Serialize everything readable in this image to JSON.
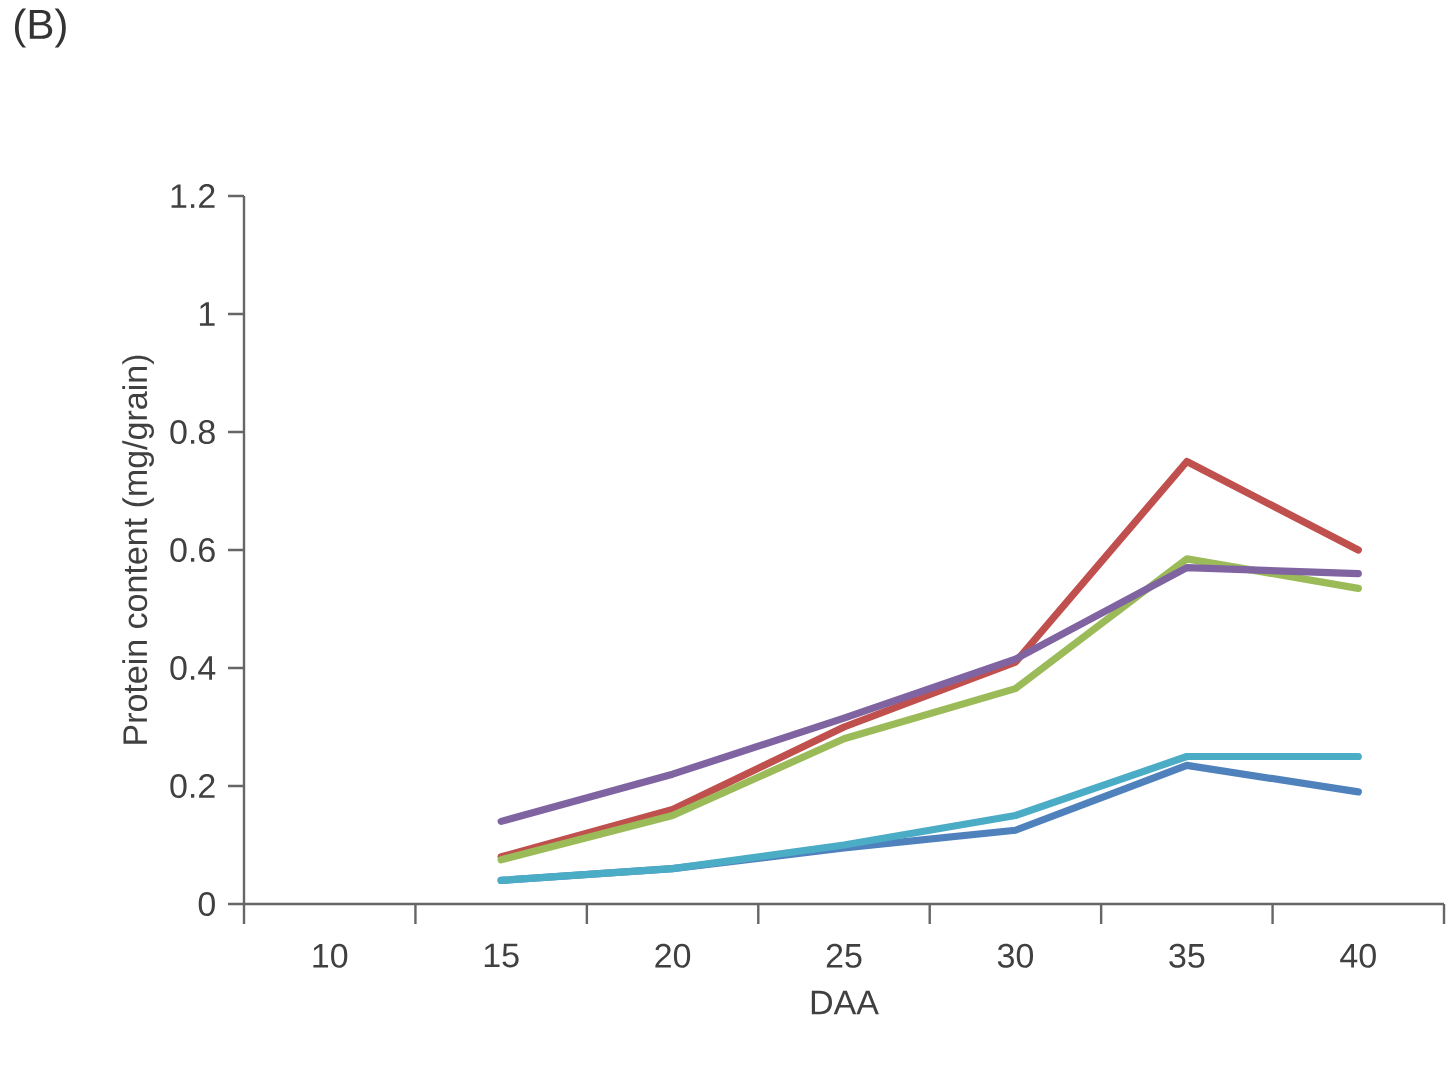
{
  "chart_data": {
    "type": "line",
    "title": "(B)",
    "xlabel": "DAA",
    "ylabel": "Protein content (mg/grain)",
    "categories": [
      "10",
      "15",
      "20",
      "25",
      "30",
      "35",
      "40"
    ],
    "ylim": [
      0,
      1.2
    ],
    "yticks": [
      0,
      0.2,
      0.4,
      0.6,
      0.8,
      1,
      1.2
    ],
    "series": [
      {
        "color": "#4f81bd",
        "values": [
          null,
          0.04,
          0.06,
          0.095,
          0.125,
          0.235,
          0.19
        ]
      },
      {
        "color": "#c0504d",
        "values": [
          null,
          0.08,
          0.16,
          0.3,
          0.41,
          0.75,
          0.6
        ]
      },
      {
        "color": "#9bbb59",
        "values": [
          null,
          0.075,
          0.15,
          0.28,
          0.365,
          0.585,
          0.535
        ]
      },
      {
        "color": "#8064a2",
        "values": [
          null,
          0.14,
          0.22,
          0.315,
          0.415,
          0.57,
          0.56
        ]
      },
      {
        "color": "#4bacc6",
        "values": [
          null,
          0.04,
          0.06,
          0.1,
          0.15,
          0.25,
          0.25
        ]
      }
    ]
  }
}
